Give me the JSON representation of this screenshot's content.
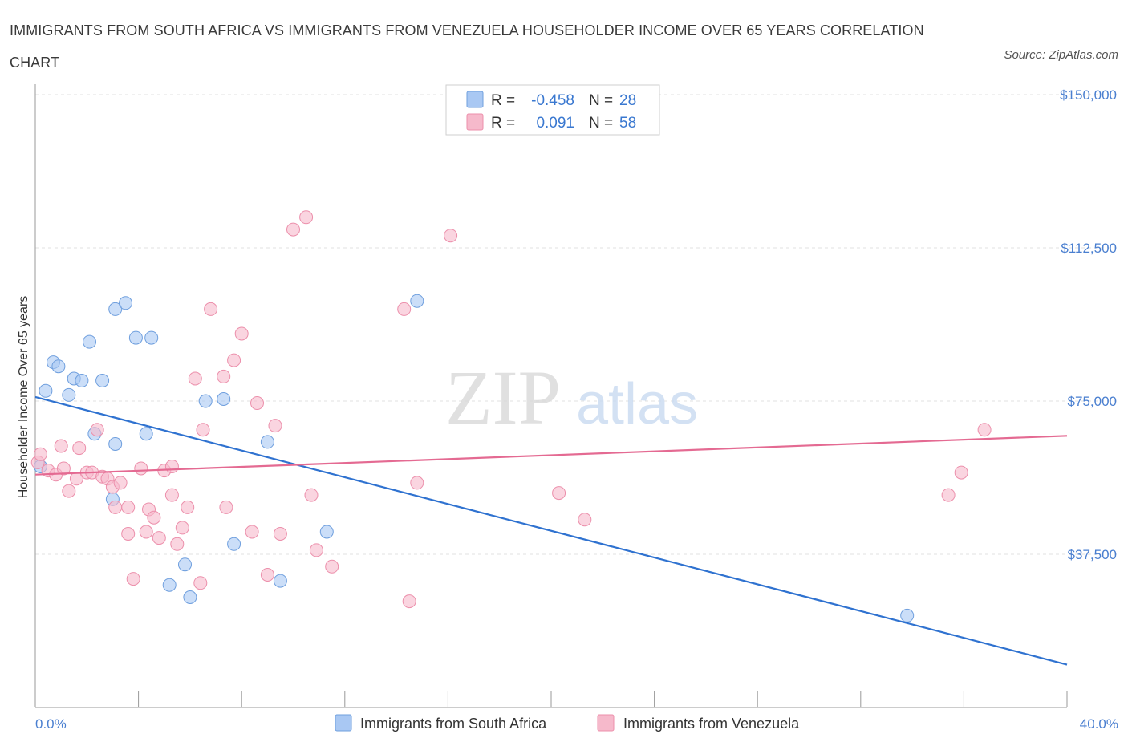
{
  "title": "IMMIGRANTS FROM SOUTH AFRICA VS IMMIGRANTS FROM VENEZUELA HOUSEHOLDER INCOME OVER 65 YEARS CORRELATION CHART",
  "source": "Source: ZipAtlas.com",
  "watermark": {
    "zip": "ZIP",
    "atlas": "atlas"
  },
  "legend": {
    "r_label": "R =",
    "n_label": "N =",
    "rows": [
      {
        "r": "-0.458",
        "n": "28",
        "color": "#a9c8f3"
      },
      {
        "r": "0.091",
        "n": "58",
        "color": "#f6b9cb"
      }
    ]
  },
  "chart_data": {
    "type": "scatter",
    "ylabel": "Householder Income Over 65 years",
    "x_axis": {
      "min": 0,
      "max": 40,
      "labels": [
        "0.0%",
        "40.0%"
      ]
    },
    "y_axis": {
      "min": 0,
      "max": 150000,
      "ticks": [
        37500,
        75000,
        112500,
        150000
      ],
      "tick_labels": [
        "$37,500",
        "$75,000",
        "$112,500",
        "$150,000"
      ]
    },
    "grid": "horizontal dashed",
    "series": [
      {
        "name": "Immigrants from South Africa",
        "color": "#a9c8f3",
        "stroke": "#6f9fde",
        "line_color": "#2f72d0",
        "trend": [
          [
            0,
            76000
          ],
          [
            40,
            10500
          ]
        ],
        "points": [
          [
            0.2,
            59000
          ],
          [
            0.4,
            77500
          ],
          [
            0.7,
            84500
          ],
          [
            0.9,
            83500
          ],
          [
            1.3,
            76500
          ],
          [
            1.5,
            80500
          ],
          [
            1.8,
            80000
          ],
          [
            2.1,
            89500
          ],
          [
            2.3,
            67000
          ],
          [
            2.6,
            80000
          ],
          [
            3.0,
            51000
          ],
          [
            3.1,
            64500
          ],
          [
            3.1,
            97500
          ],
          [
            3.5,
            99000
          ],
          [
            3.9,
            90500
          ],
          [
            4.3,
            67000
          ],
          [
            4.5,
            90500
          ],
          [
            5.2,
            30000
          ],
          [
            5.8,
            35000
          ],
          [
            6.0,
            27000
          ],
          [
            6.6,
            75000
          ],
          [
            7.3,
            75500
          ],
          [
            7.7,
            40000
          ],
          [
            9.0,
            65000
          ],
          [
            9.5,
            31000
          ],
          [
            11.3,
            43000
          ],
          [
            14.8,
            99500
          ],
          [
            33.8,
            22500
          ]
        ]
      },
      {
        "name": "Immigrants from Venezuela",
        "color": "#f6b9cb",
        "stroke": "#ec8fab",
        "line_color": "#e46a92",
        "trend": [
          [
            0,
            57000
          ],
          [
            40,
            66500
          ]
        ],
        "points": [
          [
            0.1,
            60000
          ],
          [
            0.2,
            62000
          ],
          [
            0.5,
            58000
          ],
          [
            0.8,
            57000
          ],
          [
            1.0,
            64000
          ],
          [
            1.1,
            58500
          ],
          [
            1.3,
            53000
          ],
          [
            1.6,
            56000
          ],
          [
            1.7,
            63500
          ],
          [
            2.0,
            57500
          ],
          [
            2.2,
            57500
          ],
          [
            2.4,
            68000
          ],
          [
            2.6,
            56500
          ],
          [
            2.8,
            56000
          ],
          [
            3.0,
            54000
          ],
          [
            3.1,
            49000
          ],
          [
            3.3,
            55000
          ],
          [
            3.6,
            49000
          ],
          [
            3.6,
            42500
          ],
          [
            3.8,
            31500
          ],
          [
            4.1,
            58500
          ],
          [
            4.3,
            43000
          ],
          [
            4.4,
            48500
          ],
          [
            4.6,
            46500
          ],
          [
            4.8,
            41500
          ],
          [
            5.0,
            58000
          ],
          [
            5.3,
            52000
          ],
          [
            5.3,
            59000
          ],
          [
            5.5,
            40000
          ],
          [
            5.7,
            44000
          ],
          [
            5.9,
            49000
          ],
          [
            6.2,
            80500
          ],
          [
            6.4,
            30500
          ],
          [
            6.5,
            68000
          ],
          [
            6.8,
            97500
          ],
          [
            7.3,
            81000
          ],
          [
            7.4,
            49000
          ],
          [
            7.7,
            85000
          ],
          [
            8.0,
            91500
          ],
          [
            8.4,
            43000
          ],
          [
            8.6,
            74500
          ],
          [
            9.0,
            32500
          ],
          [
            9.3,
            69000
          ],
          [
            9.5,
            42500
          ],
          [
            10.0,
            117000
          ],
          [
            10.5,
            120000
          ],
          [
            10.7,
            52000
          ],
          [
            10.9,
            38500
          ],
          [
            11.5,
            34500
          ],
          [
            14.3,
            97500
          ],
          [
            14.5,
            26000
          ],
          [
            14.8,
            55000
          ],
          [
            16.1,
            115500
          ],
          [
            20.3,
            52500
          ],
          [
            21.3,
            46000
          ],
          [
            35.4,
            52000
          ],
          [
            35.9,
            57500
          ],
          [
            36.8,
            68000
          ]
        ]
      }
    ]
  }
}
